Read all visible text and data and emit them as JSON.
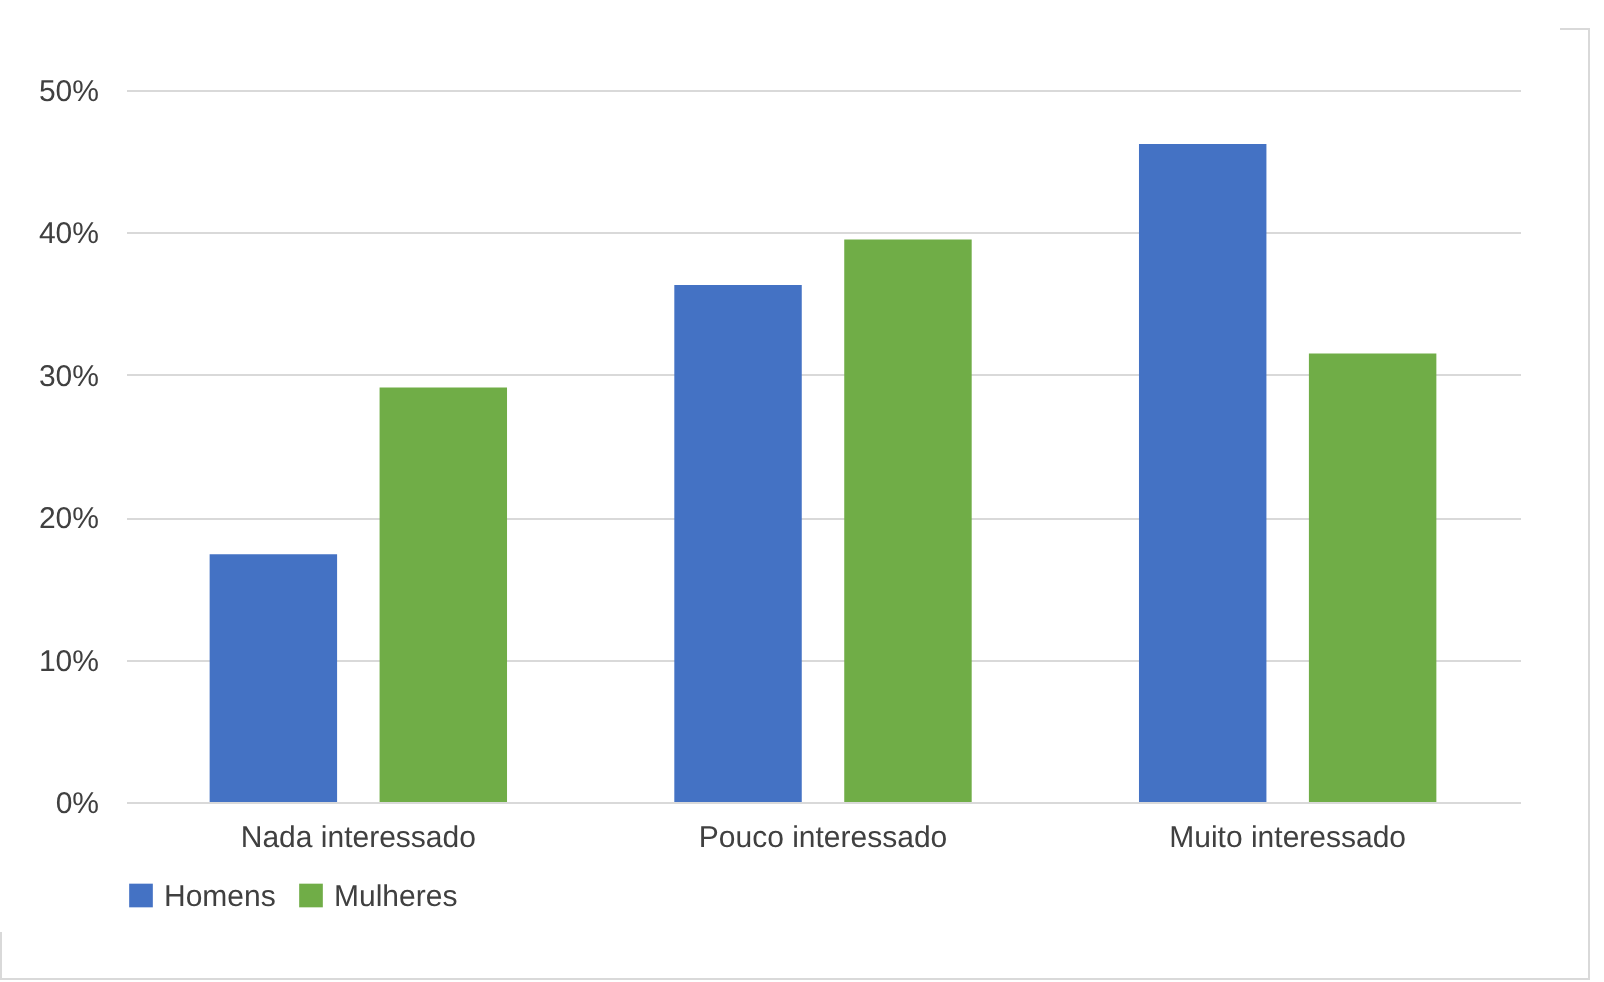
{
  "chart_data": {
    "type": "bar",
    "categories": [
      "Nada interessado",
      "Pouco interessado",
      "Muito interessado"
    ],
    "series": [
      {
        "name": "Homens",
        "color": "#4472c4",
        "values": [
          17.4,
          36.3,
          46.2
        ]
      },
      {
        "name": "Mulheres",
        "color": "#70ad47",
        "values": [
          29.1,
          39.5,
          31.5
        ]
      }
    ],
    "ylim": [
      0,
      50
    ],
    "yticks": [
      {
        "value": 0,
        "label": "0%"
      },
      {
        "value": 10,
        "label": "10%"
      },
      {
        "value": 20,
        "label": "20%"
      },
      {
        "value": 30,
        "label": "30%"
      },
      {
        "value": 40,
        "label": "40%"
      },
      {
        "value": 50,
        "label": "50%"
      }
    ],
    "grid": "y",
    "legend": "bottom"
  }
}
